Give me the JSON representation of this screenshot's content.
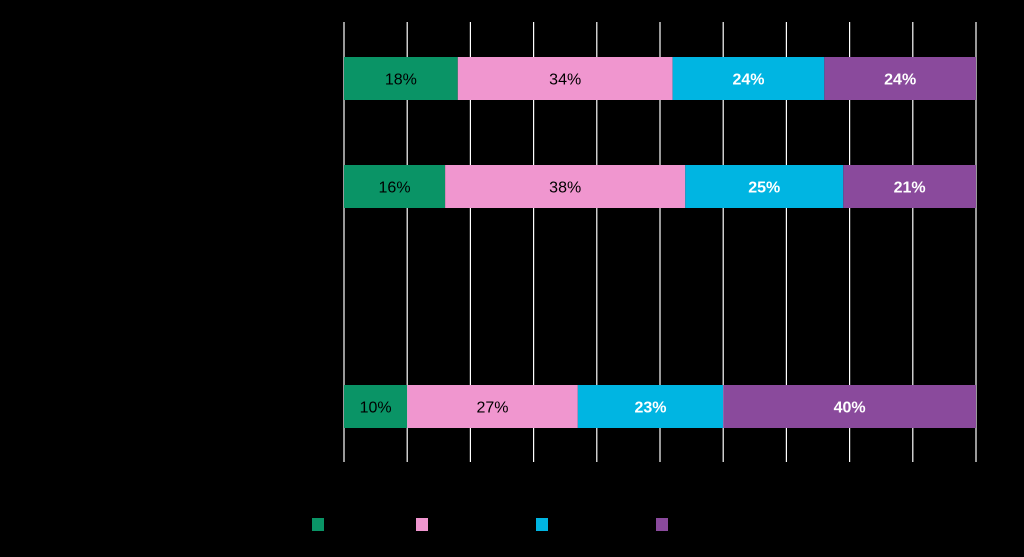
{
  "chart_data": {
    "type": "bar",
    "orientation": "horizontal",
    "stacked": true,
    "percent_stacked": true,
    "categories": [
      "",
      "",
      ""
    ],
    "series": [
      {
        "name": "",
        "color": "#0a9466",
        "values": [
          18,
          16,
          10
        ],
        "labels": [
          "18%",
          "16%",
          "10%"
        ]
      },
      {
        "name": "",
        "color": "#f096cf",
        "values": [
          34,
          38,
          27
        ],
        "labels": [
          "34%",
          "38%",
          "27%"
        ]
      },
      {
        "name": "",
        "color": "#00b5e2",
        "values": [
          24,
          25,
          23
        ],
        "labels": [
          "24%",
          "25%",
          "23%"
        ]
      },
      {
        "name": "",
        "color": "#8a4a9c",
        "values": [
          24,
          21,
          40
        ],
        "labels": [
          "24%",
          "21%",
          "40%"
        ]
      }
    ],
    "xlim": [
      0,
      100
    ],
    "grid": true,
    "legend": "bottom",
    "title": "",
    "xlabel": "",
    "ylabel": ""
  }
}
